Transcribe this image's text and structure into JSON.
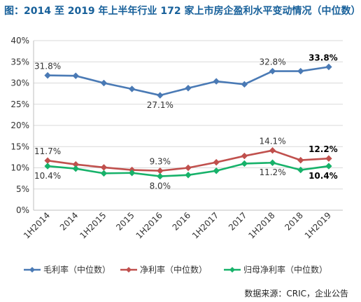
{
  "title": "图：2014 至 2019 年上半年行业 172 家上市房企盈利水平变动情况（中位数）",
  "source": "数据来源：CRIC，企业公告",
  "chart_data": {
    "type": "line",
    "categories": [
      "1H2014",
      "2014",
      "1H2015",
      "2015",
      "1H2016",
      "2016",
      "1H2017",
      "2017",
      "1H2018",
      "2018",
      "1H2019"
    ],
    "ylim": [
      0,
      40
    ],
    "yticks": [
      "0%",
      "5%",
      "10%",
      "15%",
      "20%",
      "25%",
      "30%",
      "35%",
      "40%"
    ],
    "grid": true,
    "legend_position": "bottom",
    "series": [
      {
        "name": "毛利率（中位数）",
        "color": "#4a7ab5",
        "values": [
          31.8,
          31.7,
          30.0,
          28.6,
          27.1,
          28.8,
          30.4,
          29.7,
          32.8,
          32.8,
          33.8
        ]
      },
      {
        "name": "净利率（中位数）",
        "color": "#c0504d",
        "values": [
          11.7,
          10.8,
          10.1,
          9.5,
          9.3,
          10.0,
          11.3,
          12.8,
          14.1,
          11.8,
          12.2
        ]
      },
      {
        "name": "归母净利率（中位数）",
        "color": "#17b26a",
        "values": [
          10.4,
          9.8,
          8.7,
          8.8,
          8.0,
          8.3,
          9.3,
          11.0,
          11.2,
          9.5,
          10.4
        ]
      }
    ],
    "annotations": [
      {
        "series": 0,
        "index": 0,
        "text": "31.8%",
        "pos": "above",
        "bold": false
      },
      {
        "series": 0,
        "index": 4,
        "text": "27.1%",
        "pos": "below",
        "bold": false
      },
      {
        "series": 0,
        "index": 8,
        "text": "32.8%",
        "pos": "above",
        "bold": false
      },
      {
        "series": 0,
        "index": 10,
        "text": "33.8%",
        "pos": "above",
        "bold": true
      },
      {
        "series": 1,
        "index": 0,
        "text": "11.7%",
        "pos": "above",
        "bold": false
      },
      {
        "series": 1,
        "index": 4,
        "text": "9.3%",
        "pos": "above",
        "bold": false
      },
      {
        "series": 1,
        "index": 8,
        "text": "14.1%",
        "pos": "above",
        "bold": false
      },
      {
        "series": 1,
        "index": 10,
        "text": "12.2%",
        "pos": "above",
        "bold": true
      },
      {
        "series": 2,
        "index": 0,
        "text": "10.4%",
        "pos": "below",
        "bold": false
      },
      {
        "series": 2,
        "index": 4,
        "text": "8.0%",
        "pos": "below",
        "bold": false
      },
      {
        "series": 2,
        "index": 8,
        "text": "11.2%",
        "pos": "below",
        "bold": false
      },
      {
        "series": 2,
        "index": 10,
        "text": "10.4%",
        "pos": "below",
        "bold": true
      }
    ]
  }
}
